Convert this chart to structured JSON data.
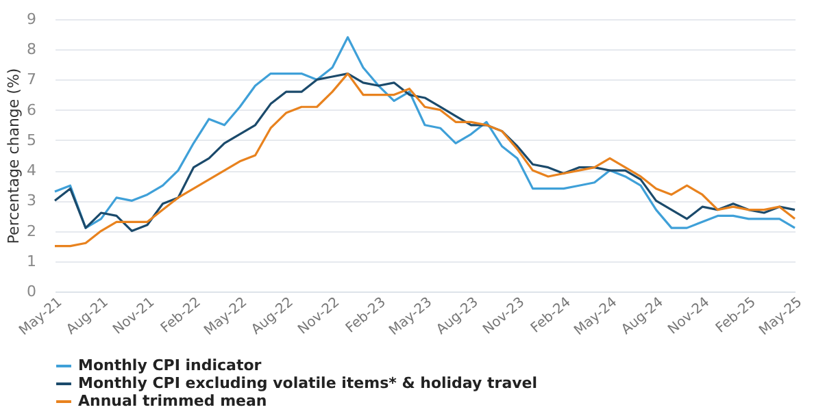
{
  "chart_data": {
    "type": "line",
    "ylabel": "Percentage change (%)",
    "categories": [
      "May-21",
      null,
      null,
      "Aug-21",
      null,
      null,
      "Nov-21",
      null,
      null,
      "Feb-22",
      null,
      null,
      "May-22",
      null,
      null,
      "Aug-22",
      null,
      null,
      "Nov-22",
      null,
      null,
      "Feb-23",
      null,
      null,
      "May-23",
      null,
      null,
      "Aug-23",
      null,
      null,
      "Nov-23",
      null,
      null,
      "Feb-24",
      null,
      null,
      "May-24",
      null,
      null,
      "Aug-24",
      null,
      null,
      "Nov-24",
      null,
      null,
      "Feb-25",
      null,
      null,
      "May-25"
    ],
    "series": [
      {
        "name": "Monthly CPI indicator",
        "color": "#3fa0d8",
        "values": [
          3.3,
          3.5,
          2.1,
          2.4,
          3.1,
          3.0,
          3.2,
          3.5,
          4.0,
          4.9,
          5.7,
          5.5,
          6.1,
          6.8,
          7.2,
          7.2,
          7.2,
          7.0,
          7.4,
          8.4,
          7.4,
          6.8,
          6.3,
          6.6,
          5.5,
          5.4,
          4.9,
          5.2,
          5.6,
          4.8,
          4.4,
          3.4,
          3.4,
          3.4,
          3.5,
          3.6,
          4.0,
          3.8,
          3.5,
          2.7,
          2.1,
          2.1,
          2.3,
          2.5,
          2.5,
          2.4,
          2.4,
          2.4,
          2.1
        ]
      },
      {
        "name": "Monthly CPI excluding volatile items* & holiday travel",
        "color": "#1b4a6b",
        "values": [
          3.0,
          3.4,
          2.1,
          2.6,
          2.5,
          2.0,
          2.2,
          2.9,
          3.1,
          4.1,
          4.4,
          4.9,
          5.2,
          5.5,
          6.2,
          6.6,
          6.6,
          7.0,
          7.1,
          7.2,
          6.9,
          6.8,
          6.9,
          6.5,
          6.4,
          6.1,
          5.8,
          5.5,
          5.5,
          5.3,
          4.8,
          4.2,
          4.1,
          3.9,
          4.1,
          4.1,
          4.0,
          4.0,
          3.7,
          3.0,
          2.7,
          2.4,
          2.8,
          2.7,
          2.9,
          2.7,
          2.6,
          2.8,
          2.7
        ]
      },
      {
        "name": "Annual trimmed mean",
        "color": "#e8821e",
        "values": [
          1.5,
          1.5,
          1.6,
          2.0,
          2.3,
          2.3,
          2.3,
          2.7,
          3.1,
          3.4,
          3.7,
          4.0,
          4.3,
          4.5,
          5.4,
          5.9,
          6.1,
          6.1,
          6.6,
          7.2,
          6.5,
          6.5,
          6.5,
          6.7,
          6.1,
          6.0,
          5.6,
          5.6,
          5.5,
          5.3,
          4.7,
          4.0,
          3.8,
          3.9,
          4.0,
          4.1,
          4.4,
          4.1,
          3.8,
          3.4,
          3.2,
          3.5,
          3.2,
          2.7,
          2.8,
          2.7,
          2.7,
          2.8,
          2.4
        ]
      }
    ],
    "ylim": [
      0,
      9
    ],
    "yticks": [
      0,
      1,
      2,
      3,
      4,
      5,
      6,
      7,
      8,
      9
    ],
    "grid": "y",
    "legend": "bottom",
    "marker": "none",
    "line_style": "solid"
  }
}
